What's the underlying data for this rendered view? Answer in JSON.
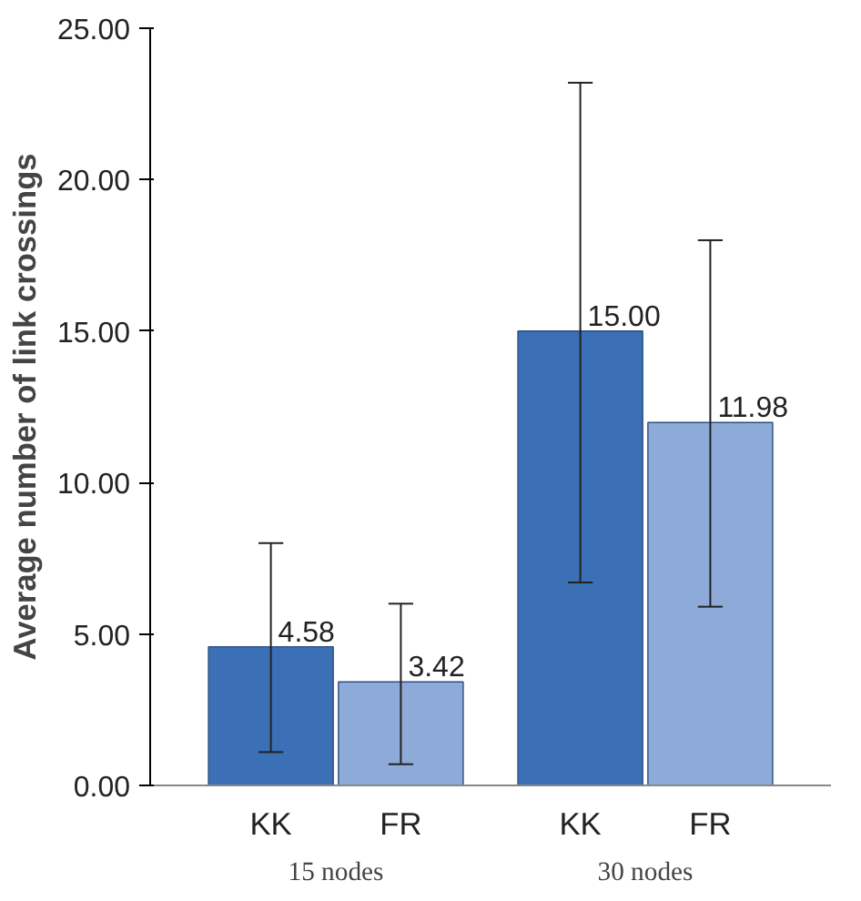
{
  "chart_data": {
    "type": "bar",
    "ylabel": "Average number of link crossings",
    "categories": [
      "15 nodes",
      "30 nodes"
    ],
    "series": [
      {
        "name": "KK",
        "color": "#3b6fb6",
        "values": [
          4.58,
          15.0
        ],
        "errors": [
          [
            1.1,
            8.0
          ],
          [
            6.7,
            23.2
          ]
        ],
        "value_labels": [
          "4.58",
          "15.00"
        ]
      },
      {
        "name": "FR",
        "color": "#8eaad9",
        "values": [
          3.42,
          11.98
        ],
        "errors": [
          [
            0.7,
            6.0
          ],
          [
            5.9,
            18.0
          ]
        ],
        "value_labels": [
          "3.42",
          "11.98"
        ]
      }
    ],
    "ylim": [
      0,
      25
    ],
    "yticks": [
      {
        "value": 0,
        "label": "0.00"
      },
      {
        "value": 5,
        "label": "5.00"
      },
      {
        "value": 10,
        "label": "10.00"
      },
      {
        "value": 15,
        "label": "15.00"
      },
      {
        "value": 20,
        "label": "20.00"
      },
      {
        "value": 25,
        "label": "25.00"
      }
    ],
    "grid": false,
    "legend": false
  }
}
